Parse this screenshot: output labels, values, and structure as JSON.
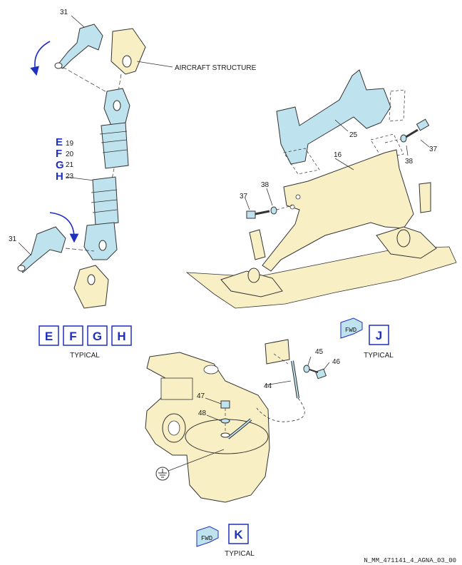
{
  "colors": {
    "part_blue": "#bfe3ee",
    "structure_yellow": "#f8efc4",
    "index_blue": "#1f2fbf",
    "outline": "#333333"
  },
  "labels": {
    "aircraft_structure": "AIRCRAFT STRUCTURE",
    "n31_top": "31",
    "n31_bottom": "31",
    "n19": "19",
    "n20": "20",
    "n21": "21",
    "n23": "23",
    "n25": "25",
    "n16": "16",
    "n37_right": "37",
    "n38_right": "38",
    "n37_left": "37",
    "n38_left": "38",
    "n45": "45",
    "n46": "46",
    "n44": "44",
    "n47": "47",
    "n48": "48"
  },
  "side_letters": {
    "e": "E",
    "f": "F",
    "g": "G",
    "h": "H"
  },
  "views": {
    "efgh": {
      "boxes": [
        "E",
        "F",
        "G",
        "H"
      ],
      "caption": "TYPICAL"
    },
    "j": {
      "box": "J",
      "caption": "TYPICAL",
      "fwd": "FWD"
    },
    "k": {
      "box": "K",
      "caption": "TYPICAL",
      "fwd": "FWD"
    }
  },
  "figure_ref": "N_MM_471141_4_AGNA_03_00"
}
